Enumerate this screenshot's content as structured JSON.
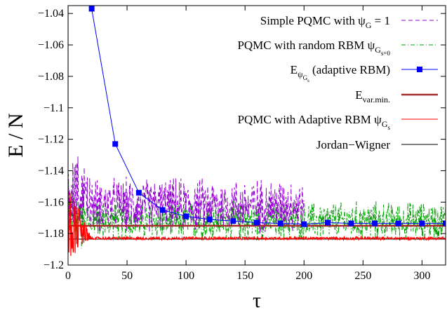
{
  "chart_data": {
    "type": "line",
    "title": "",
    "xlabel": "τ",
    "ylabel": "E / N",
    "xlim": [
      0,
      320
    ],
    "ylim": [
      -1.2,
      -1.035
    ],
    "xticks": [
      0,
      50,
      100,
      150,
      200,
      250,
      300
    ],
    "yticks": [
      -1.2,
      -1.18,
      -1.16,
      -1.14,
      -1.12,
      -1.1,
      -1.08,
      -1.06,
      -1.04
    ],
    "xtick_labels": [
      "0",
      "50",
      "100",
      "150",
      "200",
      "250",
      "300"
    ],
    "ytick_labels": [
      "-1.2",
      "-1.18",
      "-1.16",
      "-1.14",
      "-1.12",
      "-1.1",
      "-1.08",
      "-1.06",
      "-1.04"
    ],
    "grid": false,
    "legend_position": "top-right",
    "legend": [
      {
        "pre": "Simple PQMC with ",
        "sym": "ψ",
        "sub": "G",
        "subsub": "",
        "post": " = 1",
        "color": "#9400d3",
        "style": "dashed"
      },
      {
        "pre": "PQMC with random RBM ",
        "sym": "ψ",
        "sub": "G",
        "subsub": "s=0",
        "post": "",
        "color": "#00a000",
        "style": "dashdot"
      },
      {
        "pre": "E",
        "sym": "",
        "sub": "ψ",
        "subsub": "G",
        "subsub2": "s",
        "post": " (adaptive RBM)",
        "color": "#0000ff",
        "style": "line-marker"
      },
      {
        "pre": "E",
        "sym": "",
        "sub": "var.min.",
        "subsub": "",
        "post": "",
        "color": "#a52a2a",
        "style": "thick"
      },
      {
        "pre": "PQMC with Adaptive RBM ",
        "sym": "ψ",
        "sub": "G",
        "subsub": "s",
        "post": "",
        "color": "#ff0000",
        "style": "solid"
      },
      {
        "pre": "Jordan−Wigner",
        "sym": "",
        "sub": "",
        "subsub": "",
        "post": "",
        "color": "#000000",
        "style": "solid"
      }
    ],
    "series": [
      {
        "name": "Simple PQMC with ψG = 1",
        "kind": "noisy",
        "x_range": [
          0,
          200
        ],
        "mean": -1.162,
        "amplitude": 0.014,
        "decay_start": -1.14,
        "color": "#9400d3"
      },
      {
        "name": "PQMC with random RBM ψGs=0",
        "kind": "noisy",
        "x_range": [
          0,
          320
        ],
        "mean": -1.172,
        "amplitude": 0.01,
        "decay_start": -1.16,
        "color": "#00a000"
      },
      {
        "name": "EψGs (adaptive RBM)",
        "kind": "markers",
        "x": [
          20,
          40,
          60,
          80,
          100,
          120,
          140,
          160,
          180,
          200,
          220,
          240,
          260,
          280,
          300,
          320
        ],
        "y": [
          -1.037,
          -1.123,
          -1.154,
          -1.165,
          -1.169,
          -1.171,
          -1.172,
          -1.173,
          -1.1735,
          -1.174,
          -1.173,
          -1.1735,
          -1.1735,
          -1.1735,
          -1.1735,
          -1.1735
        ],
        "color": "#0000ff"
      },
      {
        "name": "Evar.min.",
        "kind": "hline",
        "y": -1.175,
        "color": "#a52a2a"
      },
      {
        "name": "PQMC with Adaptive RBM ψGs",
        "kind": "noisy",
        "x_range": [
          0,
          320
        ],
        "mean": -1.183,
        "amplitude": 0.0008,
        "decay_start": -1.16,
        "color": "#ff0000"
      },
      {
        "name": "Jordan−Wigner",
        "kind": "hline",
        "y": -1.1835,
        "color": "#000000"
      }
    ]
  }
}
